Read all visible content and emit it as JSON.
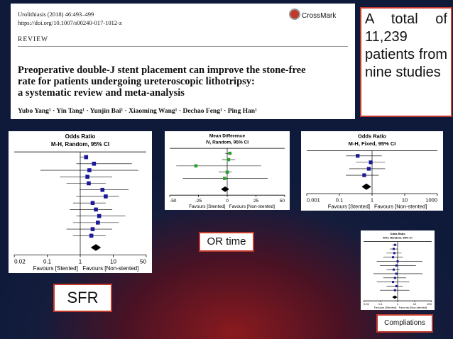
{
  "header": {
    "journal": "Urolithiasis (2018) 46:493–499",
    "doi": "https://doi.org/10.1007/s00240-017-1012-z",
    "crossmark": "CrossMark",
    "section": "REVIEW",
    "title_lines": [
      "Preoperative double-J stent placement can improve the stone-free",
      "rate for patients undergoing ureteroscopic lithotripsy:",
      "a systematic review and meta-analysis"
    ],
    "authors": "Yubo Yang¹ · Yin Tang¹ · Yunjin Bai¹ · Xiaoming Wang¹ · Dechao Feng¹ · Ping Han¹"
  },
  "callout": "A total of 11,239 patients from nine studies",
  "plots": [
    {
      "heading": "Odds Ratio",
      "method": "M-H, Random, 95% CI",
      "ticks": [
        "0.02",
        "0.1",
        "1",
        "10",
        "50"
      ],
      "left_caption": "Favours [Stented]",
      "right_caption": "Favours [Non-stented]"
    },
    {
      "heading": "Mean Difference",
      "method": "IV, Random, 95% CI",
      "ticks": [
        "-50",
        "-25",
        "0",
        "25",
        "50"
      ],
      "left_caption": "Favours [Stented]",
      "right_caption": "Favours [Non-stented]"
    },
    {
      "heading": "Odds Ratio",
      "method": "M-H, Fixed, 95% CI",
      "ticks": [
        "0.001",
        "0.1",
        "1",
        "10",
        "1000"
      ],
      "left_caption": "Favours [Stented]",
      "right_caption": "Favours [Non-stented]"
    },
    {
      "heading": "Odds Ratio",
      "method": "M-H, Random, 95% CI",
      "ticks": [
        "0.01",
        "0.1",
        "1",
        "10",
        "100"
      ],
      "left_caption": "Favours [Stented]",
      "right_caption": "Favours [Non-stented]"
    }
  ],
  "labels": {
    "or_time": "OR time",
    "sfr": "SFR",
    "complications": "Compliations"
  }
}
